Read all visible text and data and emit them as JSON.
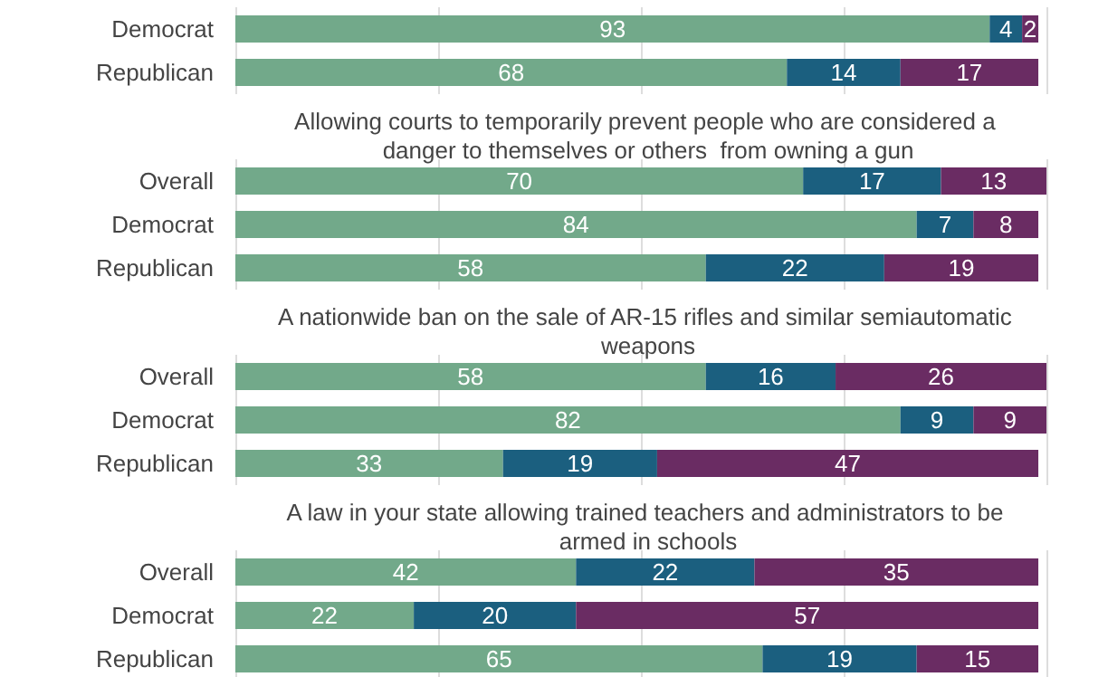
{
  "chart_data": [
    {
      "type": "bar",
      "orientation": "horizontal",
      "stacked": true,
      "categories": [
        "Democrat",
        "Republican"
      ],
      "series": [
        {
          "color": "#72a98a",
          "values": [
            93,
            68
          ]
        },
        {
          "color": "#1b5f7f",
          "values": [
            4,
            14
          ]
        },
        {
          "color": "#6a2c63",
          "values": [
            2,
            17
          ]
        }
      ],
      "xlim": [
        0,
        100
      ],
      "xticks": [
        0,
        25,
        50,
        75,
        100
      ],
      "grid": "x",
      "tick_labels": "y",
      "data_labels": true
    },
    {
      "type": "bar",
      "orientation": "horizontal",
      "stacked": true,
      "title": "Allowing courts to temporarily prevent people who are considered a danger to themselves or others  from owning a gun",
      "categories": [
        "Overall",
        "Democrat",
        "Republican"
      ],
      "series": [
        {
          "color": "#72a98a",
          "values": [
            70,
            84,
            58
          ]
        },
        {
          "color": "#1b5f7f",
          "values": [
            17,
            7,
            22
          ]
        },
        {
          "color": "#6a2c63",
          "values": [
            13,
            8,
            19
          ]
        }
      ],
      "xlim": [
        0,
        100
      ],
      "xticks": [
        0,
        25,
        50,
        75,
        100
      ],
      "grid": "x",
      "tick_labels": "y",
      "data_labels": true
    },
    {
      "type": "bar",
      "orientation": "horizontal",
      "stacked": true,
      "title": "A nationwide ban on the sale of AR-15 rifles and similar semiautomatic weapons",
      "categories": [
        "Overall",
        "Democrat",
        "Republican"
      ],
      "series": [
        {
          "color": "#72a98a",
          "values": [
            58,
            82,
            33
          ]
        },
        {
          "color": "#1b5f7f",
          "values": [
            16,
            9,
            19
          ]
        },
        {
          "color": "#6a2c63",
          "values": [
            26,
            9,
            47
          ]
        }
      ],
      "xlim": [
        0,
        100
      ],
      "xticks": [
        0,
        25,
        50,
        75,
        100
      ],
      "grid": "x",
      "tick_labels": "y",
      "data_labels": true
    },
    {
      "type": "bar",
      "orientation": "horizontal",
      "stacked": true,
      "title": "A law in your state allowing trained teachers and administrators to be armed in schools",
      "categories": [
        "Overall",
        "Democrat",
        "Republican"
      ],
      "series": [
        {
          "color": "#72a98a",
          "values": [
            42,
            22,
            65
          ]
        },
        {
          "color": "#1b5f7f",
          "values": [
            22,
            20,
            19
          ]
        },
        {
          "color": "#6a2c63",
          "values": [
            35,
            57,
            15
          ]
        }
      ],
      "xlim": [
        0,
        100
      ],
      "xticks": [
        0,
        25,
        50,
        75,
        100
      ],
      "grid": "x",
      "tick_labels": "y",
      "data_labels": true
    }
  ]
}
